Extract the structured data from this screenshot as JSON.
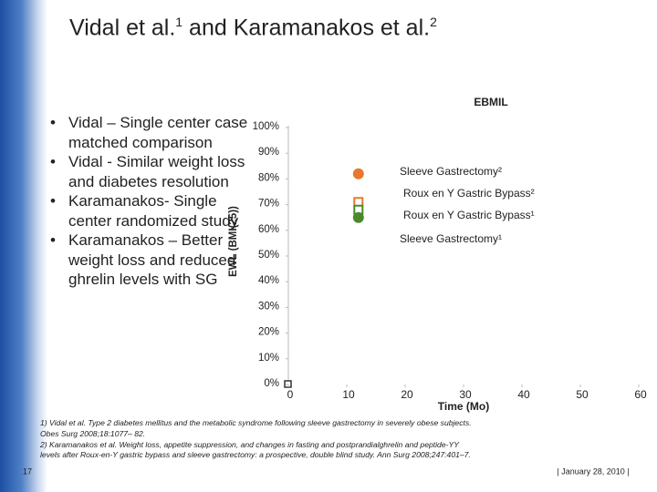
{
  "header": {
    "title": "Vidal et al.",
    "title_sup1": "1",
    "title_mid": " and Karamanakos et al.",
    "title_sup2": "2"
  },
  "bullets": [
    "Vidal – Single center case matched comparison",
    "Vidal - Similar weight loss and diabetes resolution",
    "Karamanakos- Single center randomized study",
    "Karamanakos – Better weight loss and reduced ghrelin levels with SG"
  ],
  "chart_data": {
    "type": "scatter",
    "title": "EBMIL",
    "y_label": "EWL (BMI(25))",
    "x_label": "Time (Mo)",
    "xlim": [
      0,
      60
    ],
    "xticks": [
      0,
      10,
      20,
      30,
      40,
      50,
      60
    ],
    "ylim": [
      0,
      100
    ],
    "yticks": [
      {
        "value": 0,
        "label": "0%"
      },
      {
        "value": 10,
        "label": "10%"
      },
      {
        "value": 20,
        "label": "20%"
      },
      {
        "value": 30,
        "label": "30%"
      },
      {
        "value": 40,
        "label": "40%"
      },
      {
        "value": 50,
        "label": "50%"
      },
      {
        "value": 60,
        "label": "60%"
      },
      {
        "value": 70,
        "label": "70%"
      },
      {
        "value": 80,
        "label": "80%"
      },
      {
        "value": 90,
        "label": "90%"
      },
      {
        "value": 100,
        "label": "100%"
      }
    ],
    "series": [
      {
        "name": "Sleeve Gastrectomy²",
        "color": "#e8782e",
        "marker": "circle",
        "filled": true,
        "x": [
          12
        ],
        "values": [
          82
        ]
      },
      {
        "name": "Roux en Y Gastric Bypass²",
        "color": "#e8782e",
        "marker": "square",
        "filled": false,
        "x": [
          12
        ],
        "values": [
          71
        ]
      },
      {
        "name": "Roux en Y Gastric Bypass¹",
        "color": "#4a8a2c",
        "marker": "square",
        "filled": false,
        "x": [
          12
        ],
        "values": [
          68
        ]
      },
      {
        "name": "Sleeve Gastrectomy¹",
        "color": "#4a8a2c",
        "marker": "circle",
        "filled": true,
        "x": [
          12
        ],
        "values": [
          65
        ]
      }
    ]
  },
  "footnotes": [
    "1)  Vidal et al. Type 2 diabetes mellitus and the metabolic syndrome following sleeve gastrectomy in severely obese subjects.",
    "Obes Surg 2008;18:1077– 82.",
    "2) Karamanakos et al. Weight loss, appetite suppression, and changes in fasting and postprandialghrelin and peptide-YY",
    "levels after Roux-en-Y gastric bypass and sleeve gastrectomy: a prospective, double blind study. Ann Surg 2008;247:401–7."
  ],
  "footer": {
    "page": "17",
    "date": "| January 28, 2010 |"
  }
}
